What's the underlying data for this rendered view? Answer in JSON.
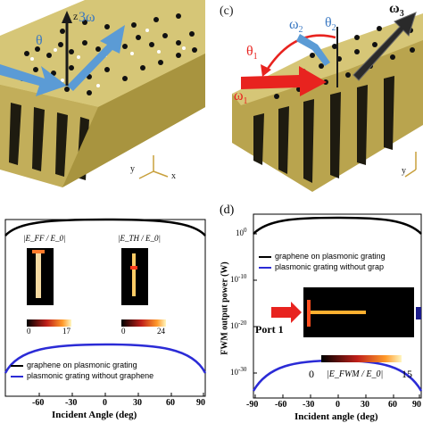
{
  "panel_a": {
    "labels": {
      "z": "z",
      "theta": "θ",
      "omega3": "3ω",
      "y": "y",
      "x": "x"
    },
    "colors": {
      "gold": "#c8b45a",
      "arrow_blue": "#5b9bd5",
      "dark": "#1a1a1a"
    }
  },
  "panel_c": {
    "tag": "(c)",
    "labels": {
      "omega2": "ω",
      "omega2_sub": "2",
      "theta2": "θ",
      "theta2_sub": "2",
      "omega3": "ω",
      "omega3_sub": "3",
      "theta1": "θ",
      "theta1_sub": "1",
      "omega1": "ω",
      "omega1_sub": "1",
      "y": "y"
    },
    "colors": {
      "red": "#e8231f",
      "blue": "#5b9bd5",
      "gold": "#c8b45a"
    }
  },
  "panel_b": {
    "inset_left": {
      "label": "|E_FF / E_0|",
      "cbar_min": "0",
      "cbar_max": "17"
    },
    "inset_right": {
      "label": "|E_TH / E_0|",
      "cbar_min": "0",
      "cbar_max": "24"
    },
    "legend": [
      "graphene on plasmonic grating",
      "plasmonic grating without graphene"
    ],
    "xlabel": "Incident Angle (deg)",
    "xticks": [
      "-60",
      "-30",
      "0",
      "30",
      "60",
      "90"
    ]
  },
  "panel_d": {
    "tag": "(d)",
    "ylabel": "FWM output power (W)",
    "yticks": [
      {
        "base": "10",
        "exp": "0"
      },
      {
        "base": "10",
        "exp": "-10"
      },
      {
        "base": "10",
        "exp": "-20"
      },
      {
        "base": "10",
        "exp": "-30"
      }
    ],
    "legend": [
      "graphene on plasmonic grating",
      "plasmonic grating without grap"
    ],
    "inset": {
      "port": "Port 1",
      "cbar_min": "0",
      "cbar_label": "|E_FWM / E_0|",
      "cbar_max": "15"
    },
    "xlabel": "Incident angle (deg)",
    "xticks": [
      "-90",
      "-60",
      "-30",
      "0",
      "30",
      "60",
      "90"
    ]
  }
}
